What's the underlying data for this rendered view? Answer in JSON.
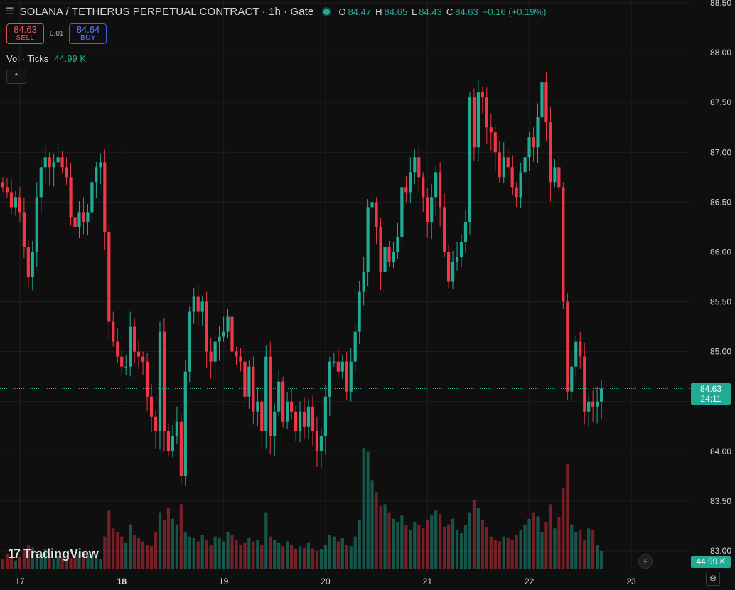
{
  "header": {
    "title": "SOLANA / TETHERUS PERPETUAL CONTRACT · 1h · Gate",
    "ohlc": {
      "o_label": "O",
      "o": "84.47",
      "h_label": "H",
      "h": "84.65",
      "l_label": "L",
      "l": "84.43",
      "c_label": "C",
      "c": "84.63",
      "change": "+0.16 (+0.19%)"
    }
  },
  "trade": {
    "sell_price": "84.63",
    "sell_label": "SELL",
    "spread": "0.01",
    "buy_price": "84.64",
    "buy_label": "BUY"
  },
  "volume_legend": {
    "name": "Vol · Ticks",
    "value": "44.99 K"
  },
  "badges": {
    "last_price": "84.63",
    "countdown": "24:11",
    "last_volume": "44.99 K"
  },
  "logo": {
    "text": "TradingView"
  },
  "colors": {
    "up": "#22ab94",
    "down": "#f23645",
    "background": "#0f0f0f",
    "grid": "#1f1f1f"
  },
  "chart_data": {
    "type": "candlestick",
    "timeframe": "1h",
    "y_ticks": [
      "88.50",
      "88.00",
      "87.50",
      "87.00",
      "86.50",
      "86.00",
      "85.50",
      "85.00",
      "84.50",
      "84.00",
      "83.50",
      "83.00"
    ],
    "ylim": [
      82.85,
      88.55
    ],
    "x_ticks": [
      {
        "label": "17",
        "hour": 0
      },
      {
        "label": "18",
        "hour": 24
      },
      {
        "label": "19",
        "hour": 48
      },
      {
        "label": "20",
        "hour": 72
      },
      {
        "label": "21",
        "hour": 96
      },
      {
        "label": "22",
        "hour": 120
      },
      {
        "label": "23",
        "hour": 144
      }
    ],
    "last_price": 84.63,
    "grid": true,
    "closes": [
      86.65,
      86.6,
      86.45,
      86.55,
      86.4,
      86.05,
      85.75,
      86.0,
      86.55,
      86.85,
      86.95,
      86.85,
      86.9,
      86.95,
      86.85,
      86.75,
      86.35,
      86.25,
      86.4,
      86.3,
      86.4,
      86.7,
      86.85,
      86.9,
      86.2,
      85.3,
      85.1,
      84.95,
      84.85,
      84.85,
      85.25,
      85.0,
      84.95,
      84.9,
      84.55,
      84.35,
      84.2,
      85.2,
      84.2,
      84.0,
      84.15,
      84.3,
      83.75,
      84.8,
      85.4,
      85.55,
      85.4,
      85.5,
      85.0,
      84.9,
      85.1,
      85.15,
      85.2,
      85.35,
      85.0,
      84.95,
      84.9,
      84.55,
      84.85,
      84.4,
      84.5,
      84.2,
      84.95,
      84.15,
      84.4,
      84.7,
      84.3,
      84.5,
      84.4,
      84.2,
      84.4,
      84.25,
      84.45,
      84.2,
      84.0,
      84.15,
      84.55,
      84.9,
      84.9,
      84.8,
      84.9,
      84.6,
      84.9,
      85.2,
      85.6,
      85.8,
      86.45,
      86.5,
      86.25,
      85.8,
      86.05,
      85.9,
      86.0,
      86.15,
      86.65,
      86.6,
      86.8,
      86.95,
      86.75,
      86.55,
      86.3,
      86.55,
      86.8,
      86.45,
      86.0,
      85.7,
      85.9,
      85.95,
      86.1,
      86.3,
      87.55,
      87.05,
      87.6,
      87.55,
      87.25,
      87.2,
      87.0,
      86.75,
      86.95,
      86.85,
      86.65,
      86.55,
      86.8,
      86.95,
      87.15,
      87.05,
      87.35,
      87.7,
      87.3,
      86.7,
      86.85,
      86.65,
      85.5,
      84.6,
      84.85,
      85.1,
      84.95,
      84.4,
      84.5,
      84.45,
      84.5,
      84.63
    ],
    "volumes": [
      12,
      18,
      14,
      10,
      15,
      22,
      30,
      26,
      20,
      18,
      24,
      15,
      12,
      16,
      14,
      11,
      13,
      17,
      20,
      22,
      18,
      16,
      14,
      12,
      40,
      72,
      50,
      45,
      40,
      32,
      55,
      42,
      38,
      34,
      30,
      28,
      45,
      70,
      60,
      75,
      62,
      55,
      80,
      46,
      40,
      38,
      34,
      42,
      36,
      30,
      40,
      38,
      34,
      46,
      42,
      36,
      30,
      32,
      38,
      34,
      36,
      30,
      70,
      40,
      36,
      32,
      28,
      34,
      30,
      24,
      28,
      26,
      32,
      25,
      22,
      24,
      30,
      42,
      40,
      34,
      38,
      30,
      28,
      40,
      60,
      150,
      145,
      110,
      95,
      78,
      80,
      70,
      62,
      58,
      66,
      54,
      48,
      58,
      55,
      50,
      60,
      66,
      72,
      68,
      52,
      55,
      62,
      48,
      44,
      54,
      70,
      85,
      75,
      60,
      52,
      40,
      36,
      34,
      40,
      38,
      36,
      42,
      48,
      55,
      62,
      70,
      65,
      45,
      58,
      80,
      50,
      64,
      100,
      130,
      55,
      45,
      48,
      36,
      50,
      48,
      30,
      22
    ]
  }
}
